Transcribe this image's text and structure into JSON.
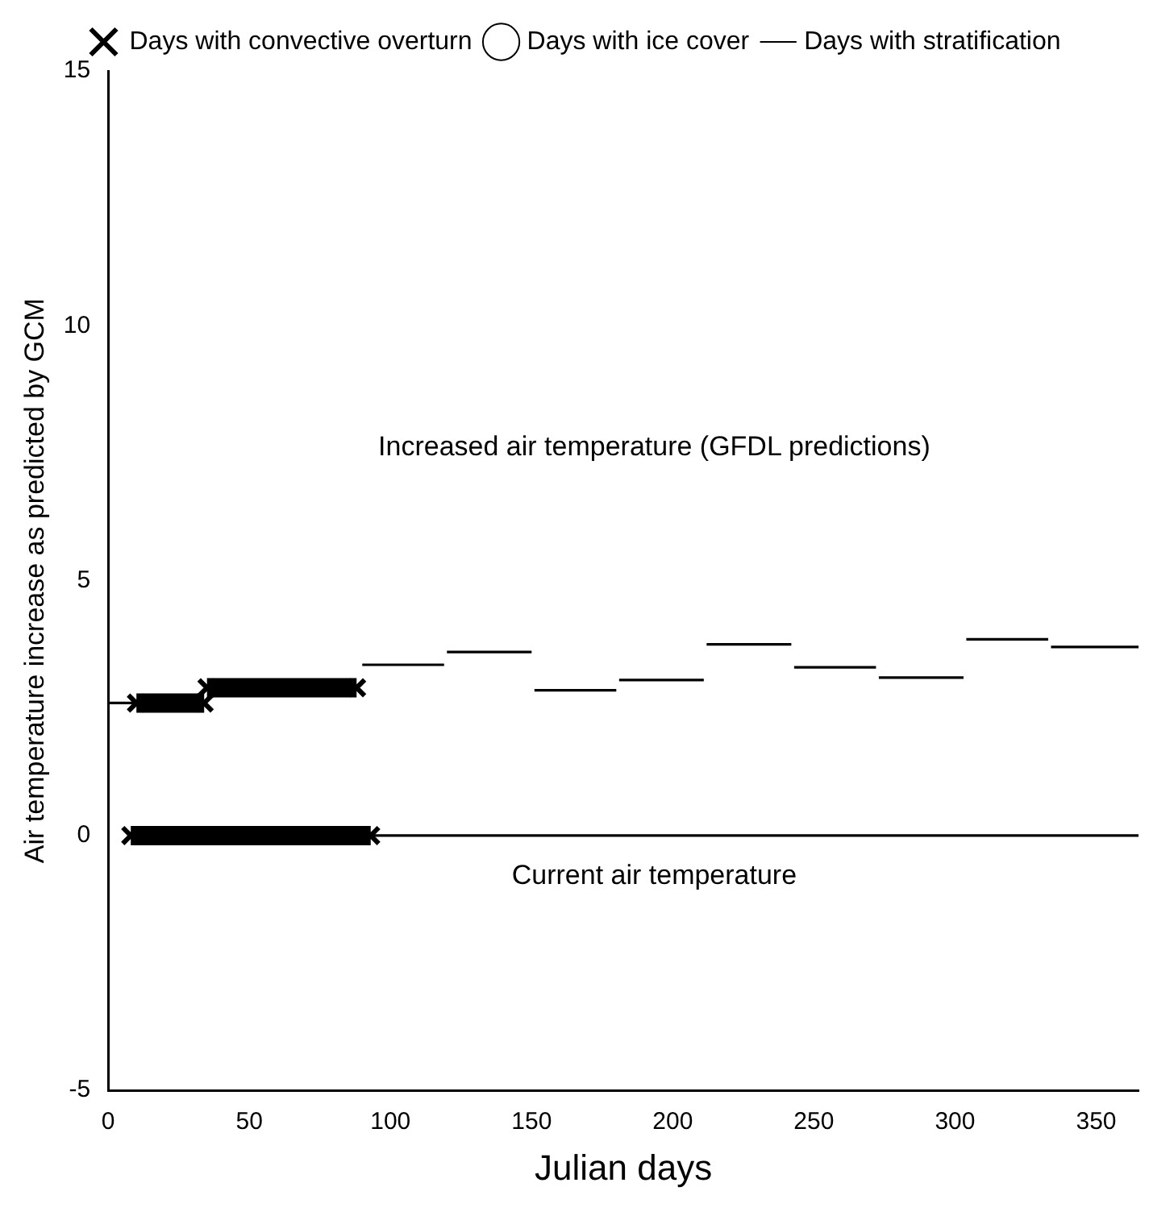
{
  "chart_data": {
    "type": "line",
    "xlabel": "Julian days",
    "ylabel": "Air temperature increase as predicted by GCM",
    "xlim": [
      0,
      365
    ],
    "ylim": [
      -5,
      15
    ],
    "xticks": [
      0,
      50,
      100,
      150,
      200,
      250,
      300,
      350
    ],
    "yticks": [
      -5,
      0,
      5,
      10,
      15
    ],
    "legend": "top",
    "annotations": [
      "Increased air temperature (GFDL predictions)",
      "Current air temperature"
    ],
    "series": [
      {
        "name": "Days with convective overturn",
        "color": "#000000",
        "marker": "cross",
        "x": [
          10,
          34,
          35,
          88
        ],
        "values": [
          2.6,
          2.6,
          2.9,
          2.9
        ]
      },
      {
        "color": "#000000",
        "marker": "cross",
        "x": [
          8,
          93
        ],
        "values": [
          0,
          0
        ]
      },
      {
        "name": "Days with ice cover",
        "color": "#000000",
        "marker": "circle"
      },
      {
        "name": "Days with stratification",
        "color": "#000000",
        "marker": "none",
        "line_style": "solid",
        "x": [
          0,
          9,
          90,
          119,
          120,
          150,
          151,
          180,
          181,
          211,
          212,
          242,
          243,
          272,
          273,
          303,
          304,
          333,
          334,
          365
        ],
        "values": [
          2.6,
          2.6,
          3.35,
          3.35,
          3.6,
          3.6,
          2.85,
          2.85,
          3.05,
          3.05,
          3.75,
          3.75,
          3.3,
          3.3,
          3.1,
          3.1,
          3.85,
          3.85,
          3.7,
          3.7
        ]
      },
      {
        "color": "#000000",
        "marker": "none",
        "line_style": "solid",
        "x": [
          93,
          365
        ],
        "values": [
          0,
          0
        ]
      }
    ]
  }
}
